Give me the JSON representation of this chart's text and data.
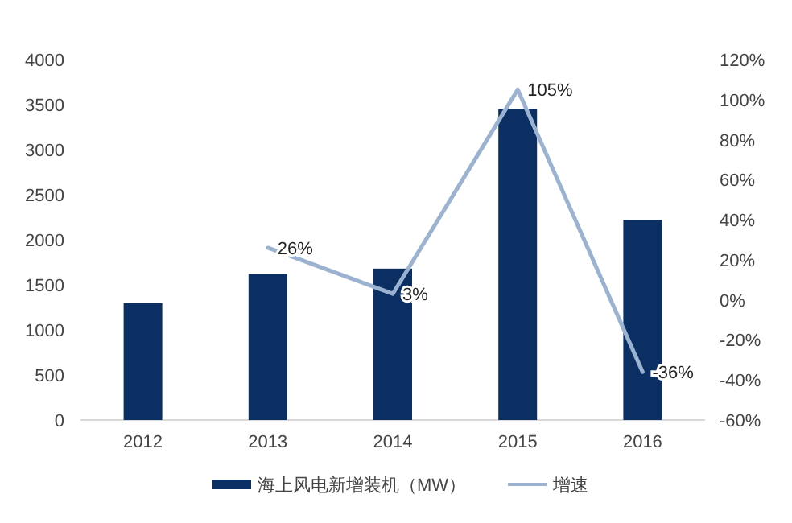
{
  "chart_data": {
    "type": "bar",
    "categories": [
      "2012",
      "2013",
      "2014",
      "2015",
      "2016"
    ],
    "series": [
      {
        "name": "海上风电新增装机（MW）",
        "color": "#0b2f63",
        "values": [
          1300,
          1620,
          1680,
          3450,
          2220
        ]
      },
      {
        "name": "增速",
        "type": "line",
        "axis": "y2",
        "color": "#9bb3d1",
        "values": [
          null,
          26,
          3,
          105,
          -36
        ],
        "value_labels": [
          null,
          "26%",
          "3%",
          "105%",
          "-36%"
        ]
      }
    ],
    "ylim": [
      0,
      4000
    ],
    "yticks": [
      0,
      500,
      1000,
      1500,
      2000,
      2500,
      3000,
      3500,
      4000
    ],
    "y2lim": [
      -60,
      120
    ],
    "y2ticks": [
      {
        "value": -60,
        "label": "-60%"
      },
      {
        "value": -40,
        "label": "-40%"
      },
      {
        "value": -20,
        "label": "-20%"
      },
      {
        "value": 0,
        "label": "0%"
      },
      {
        "value": 20,
        "label": "20%"
      },
      {
        "value": 40,
        "label": "40%"
      },
      {
        "value": 60,
        "label": "60%"
      },
      {
        "value": 80,
        "label": "80%"
      },
      {
        "value": 100,
        "label": "100%"
      },
      {
        "value": 120,
        "label": "120%"
      }
    ],
    "grid": false,
    "legend": "bottom"
  }
}
